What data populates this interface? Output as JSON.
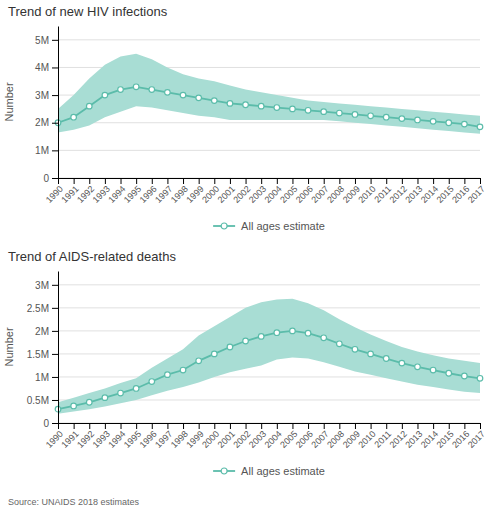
{
  "chart_data": [
    {
      "type": "line",
      "title": "Trend of new HIV infections",
      "y_label": "Number",
      "x": [
        1990,
        1991,
        1992,
        1993,
        1994,
        1995,
        1996,
        1997,
        1998,
        1999,
        2000,
        2001,
        2002,
        2003,
        2004,
        2005,
        2006,
        2007,
        2008,
        2009,
        2010,
        2011,
        2012,
        2013,
        2014,
        2015,
        2016,
        2017
      ],
      "xlim": [
        1990,
        2017
      ],
      "xticks": [
        1990,
        1991,
        1992,
        1993,
        1994,
        1995,
        1996,
        1997,
        1998,
        1999,
        2000,
        2001,
        2002,
        2003,
        2004,
        2005,
        2006,
        2007,
        2008,
        2009,
        2010,
        2011,
        2012,
        2013,
        2014,
        2015,
        2016,
        2017
      ],
      "ylim": [
        0,
        5500000
      ],
      "yticks": [
        0,
        {
          "value": 1000000,
          "label": "1M"
        },
        {
          "value": 2000000,
          "label": "2M"
        },
        {
          "value": 3000000,
          "label": "3M"
        },
        {
          "value": 4000000,
          "label": "4M"
        },
        {
          "value": 5000000,
          "label": "5M"
        }
      ],
      "grid": true,
      "legend": "bottom",
      "series": [
        {
          "type": "band",
          "color": "#a8ddd4",
          "lower": [
            1650000,
            1750000,
            1900000,
            2200000,
            2400000,
            2600000,
            2550000,
            2450000,
            2350000,
            2250000,
            2200000,
            2100000,
            2100000,
            2100000,
            2100000,
            2100000,
            2100000,
            2100000,
            2050000,
            2000000,
            1950000,
            1900000,
            1850000,
            1800000,
            1750000,
            1700000,
            1650000,
            1600000
          ],
          "upper": [
            2500000,
            3000000,
            3600000,
            4100000,
            4400000,
            4500000,
            4300000,
            4000000,
            3750000,
            3600000,
            3500000,
            3350000,
            3200000,
            3100000,
            3000000,
            2900000,
            2800000,
            2750000,
            2700000,
            2650000,
            2600000,
            2550000,
            2500000,
            2450000,
            2400000,
            2350000,
            2300000,
            2250000
          ]
        },
        {
          "type": "line",
          "name": "All ages estimate",
          "color": "#5bbcaa",
          "marker": "circle",
          "line_style": "solid",
          "values": [
            2000000,
            2200000,
            2600000,
            3000000,
            3200000,
            3300000,
            3200000,
            3100000,
            3000000,
            2900000,
            2800000,
            2700000,
            2650000,
            2600000,
            2550000,
            2500000,
            2450000,
            2400000,
            2350000,
            2300000,
            2250000,
            2200000,
            2150000,
            2100000,
            2050000,
            2000000,
            1950000,
            1850000
          ]
        }
      ]
    },
    {
      "type": "line",
      "title": "Trend of AIDS-related deaths",
      "y_label": "Number",
      "x": [
        1990,
        1991,
        1992,
        1993,
        1994,
        1995,
        1996,
        1997,
        1998,
        1999,
        2000,
        2001,
        2002,
        2003,
        2004,
        2005,
        2006,
        2007,
        2008,
        2009,
        2010,
        2011,
        2012,
        2013,
        2014,
        2015,
        2016,
        2017
      ],
      "xlim": [
        1990,
        2017
      ],
      "xticks": [
        1990,
        1991,
        1992,
        1993,
        1994,
        1995,
        1996,
        1997,
        1998,
        1999,
        2000,
        2001,
        2002,
        2003,
        2004,
        2005,
        2006,
        2007,
        2008,
        2009,
        2010,
        2011,
        2012,
        2013,
        2014,
        2015,
        2016,
        2017
      ],
      "ylim": [
        0,
        3300000
      ],
      "yticks": [
        0,
        {
          "value": 500000,
          "label": "0.5M"
        },
        {
          "value": 1000000,
          "label": "1M"
        },
        {
          "value": 1500000,
          "label": "1.5M"
        },
        {
          "value": 2000000,
          "label": "2M"
        },
        {
          "value": 2500000,
          "label": "2.5M"
        },
        {
          "value": 3000000,
          "label": "3M"
        }
      ],
      "grid": true,
      "legend": "bottom",
      "annotations": [
        "Source: UNAIDS 2018 estimates"
      ],
      "series": [
        {
          "type": "band",
          "color": "#a8ddd4",
          "lower": [
            200000,
            250000,
            300000,
            360000,
            430000,
            500000,
            600000,
            700000,
            780000,
            880000,
            1000000,
            1100000,
            1180000,
            1250000,
            1380000,
            1420000,
            1400000,
            1320000,
            1220000,
            1120000,
            1050000,
            970000,
            900000,
            830000,
            780000,
            730000,
            680000,
            650000
          ],
          "upper": [
            450000,
            550000,
            650000,
            750000,
            870000,
            970000,
            1200000,
            1400000,
            1600000,
            1900000,
            2100000,
            2300000,
            2500000,
            2620000,
            2680000,
            2700000,
            2600000,
            2450000,
            2250000,
            2080000,
            1920000,
            1780000,
            1650000,
            1550000,
            1470000,
            1400000,
            1350000,
            1300000
          ]
        },
        {
          "type": "line",
          "name": "All ages estimate",
          "color": "#5bbcaa",
          "marker": "circle",
          "line_style": "solid",
          "values": [
            300000,
            370000,
            450000,
            550000,
            650000,
            750000,
            900000,
            1050000,
            1150000,
            1350000,
            1500000,
            1650000,
            1780000,
            1880000,
            1960000,
            2000000,
            1950000,
            1850000,
            1720000,
            1600000,
            1500000,
            1400000,
            1300000,
            1220000,
            1150000,
            1080000,
            1020000,
            970000
          ]
        }
      ]
    }
  ]
}
